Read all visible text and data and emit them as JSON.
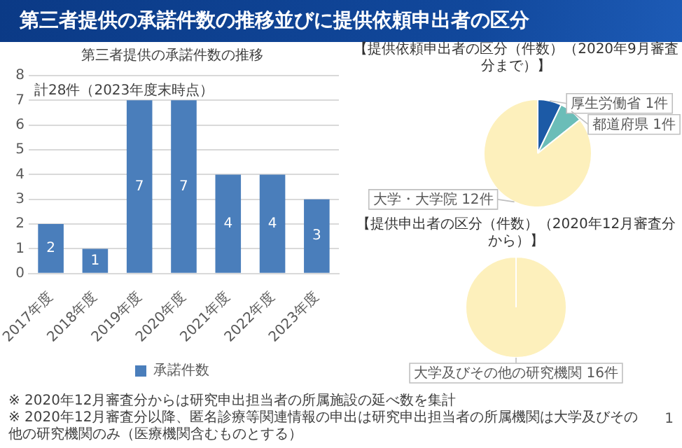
{
  "chart_data": [
    {
      "type": "other",
      "title": "第三者提供の承諾件数の推移並びに提供依頼申出者の区分",
      "annotations": [
        "※ 2020年12月審査分からは研究申出担当者の所属施設の延べ数を集計",
        "※ 2020年12月審査分以降、匿名診療等関連情報の申出は研究申出担当者の所属機関は大学及びその他の研究機関のみ（医療機関含むものとする）",
        "1"
      ]
    },
    {
      "type": "bar",
      "title": "第三者提供の承諾件数の推移",
      "categories": [
        "2017年度",
        "2018年度",
        "2019年度",
        "2020年度",
        "2021年度",
        "2022年度",
        "2023年度"
      ],
      "series": [
        {
          "name": "承諾件数",
          "color": "#4a7ebb",
          "values": [
            2,
            1,
            7,
            7,
            4,
            4,
            3
          ]
        }
      ],
      "ylim": [
        0,
        8
      ],
      "yticks": [
        0,
        1,
        2,
        3,
        4,
        5,
        6,
        7,
        8
      ],
      "grid": "y",
      "legend": "bottom",
      "data_labels": true,
      "annotations": [
        "計28件（2023年度末時点）"
      ]
    },
    {
      "type": "pie",
      "title": "【提供依頼申出者の区分（件数）（2020年9月審査分まで）】",
      "categories": [
        "厚生労働省",
        "都道府県",
        "大学・大学院"
      ],
      "values": [
        1,
        1,
        12
      ],
      "colors": [
        "#1c5aa6",
        "#6bbdb8",
        "#fdf0bc"
      ],
      "value_labels": [
        "1件",
        "1件",
        "12件"
      ]
    },
    {
      "type": "pie",
      "title": "【提供申出者の区分（件数）（2020年12月審査分から）】",
      "categories": [
        "大学及びその他の研究機関"
      ],
      "values": [
        16
      ],
      "colors": [
        "#fdf0bc"
      ],
      "value_labels": [
        "16件"
      ]
    }
  ]
}
